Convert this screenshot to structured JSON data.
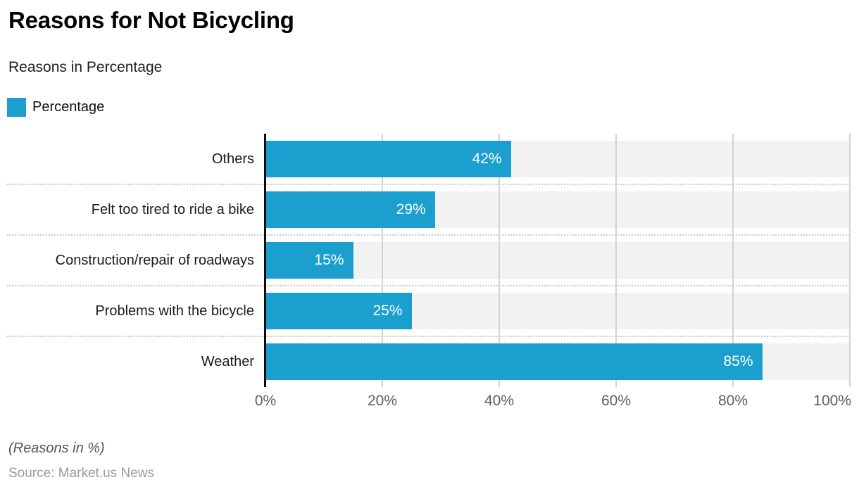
{
  "header": {
    "title": "Reasons for Not Bicycling",
    "subtitle": "Reasons in Percentage"
  },
  "legend": {
    "label": "Percentage",
    "swatch_color": "#1A9FCE"
  },
  "chart_data": {
    "type": "bar",
    "orientation": "horizontal",
    "title": "Reasons for Not Bicycling",
    "subtitle": "Reasons in Percentage",
    "categories": [
      "Others",
      "Felt too tired to ride a bike",
      "Construction/repair of roadways",
      "Problems with the bicycle",
      "Weather"
    ],
    "values": [
      42,
      29,
      15,
      25,
      85
    ],
    "value_labels": [
      "42%",
      "29%",
      "15%",
      "25%",
      "85%"
    ],
    "series": [
      {
        "name": "Percentage",
        "values": [
          42,
          29,
          15,
          25,
          85
        ]
      }
    ],
    "x_ticks": [
      "0%",
      "20%",
      "40%",
      "60%",
      "80%",
      "100%"
    ],
    "xlim": [
      0,
      100
    ],
    "grid": "vertical gridlines every 20%, dotted row separators",
    "legend_position": "top-left",
    "bar_color": "#1A9FCE",
    "track_color": "#F2F2F2",
    "axis_line_color": "#0d0d0d"
  },
  "footer": {
    "note": "(Reasons in %)",
    "source": "Source: Market.us News"
  }
}
